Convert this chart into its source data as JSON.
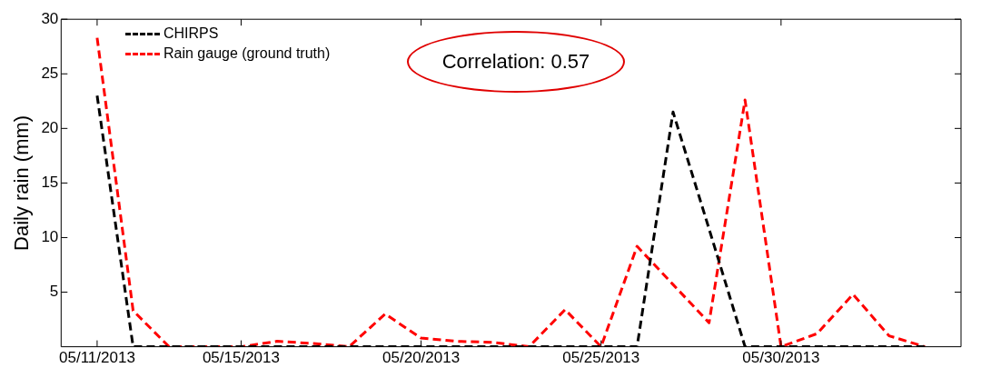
{
  "chart_data": {
    "type": "line",
    "ylabel": "Daily rain (mm)",
    "x": [
      "2013-05-11",
      "2013-05-12",
      "2013-05-13",
      "2013-05-14",
      "2013-05-15",
      "2013-05-16",
      "2013-05-17",
      "2013-05-18",
      "2013-05-19",
      "2013-05-20",
      "2013-05-21",
      "2013-05-22",
      "2013-05-23",
      "2013-05-24",
      "2013-05-25",
      "2013-05-26",
      "2013-05-27",
      "2013-05-28",
      "2013-05-29",
      "2013-05-30",
      "2013-05-31",
      "2013-06-01",
      "2013-06-02",
      "2013-06-03"
    ],
    "series": [
      {
        "name": "CHIRPS",
        "color": "#000000",
        "values": [
          23,
          0,
          0,
          0,
          0,
          0,
          0,
          0,
          0,
          0,
          0,
          0,
          0,
          0,
          0,
          0,
          21.5,
          10.8,
          0,
          0,
          0,
          0,
          0,
          0
        ]
      },
      {
        "name": "Rain gauge (ground truth)",
        "color": "#ff0000",
        "values": [
          28.3,
          3.3,
          0,
          0,
          0,
          0.5,
          0.3,
          0,
          3,
          0.8,
          0.5,
          0.4,
          0,
          3.4,
          0,
          9.2,
          5.7,
          2.2,
          22.6,
          0,
          1.2,
          4.8,
          1,
          0
        ]
      }
    ],
    "xlim": [
      "2013-05-10",
      "2013-06-04"
    ],
    "xticks": [
      {
        "value": "2013-05-11",
        "label": "05/11/2013"
      },
      {
        "value": "2013-05-15",
        "label": "05/15/2013"
      },
      {
        "value": "2013-05-20",
        "label": "05/20/2013"
      },
      {
        "value": "2013-05-25",
        "label": "05/25/2013"
      },
      {
        "value": "2013-05-30",
        "label": "05/30/2013"
      }
    ],
    "ylim": [
      0,
      30
    ],
    "yticks": [
      5,
      10,
      15,
      20,
      25,
      30
    ],
    "annotations": [
      "Correlation: 0.57"
    ],
    "legend": "top left",
    "grid": false,
    "line_style": "dashed",
    "marker": "none"
  }
}
